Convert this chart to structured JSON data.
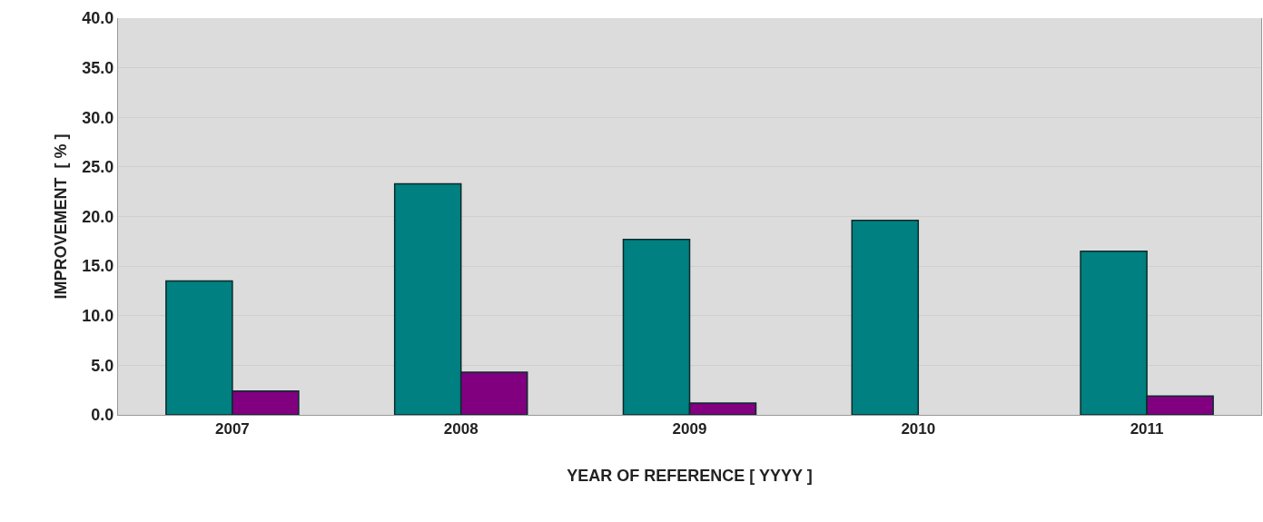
{
  "chart_data": {
    "type": "bar",
    "xlabel": "YEAR OF REFERENCE [ YYYY ]",
    "ylabel": "IMPROVEMENT  [ % ]",
    "categories": [
      "2007",
      "2008",
      "2009",
      "2010",
      "2011"
    ],
    "series": [
      {
        "color": "#008080",
        "values": [
          13.5,
          23.3,
          17.7,
          19.6,
          16.5
        ]
      },
      {
        "color": "#800080",
        "values": [
          2.4,
          4.3,
          1.2,
          null,
          1.9
        ]
      }
    ],
    "ylim": [
      0,
      40
    ],
    "yticks": [
      {
        "value": 0,
        "label": "0.0"
      },
      {
        "value": 5,
        "label": "5.0"
      },
      {
        "value": 10,
        "label": "10.0"
      },
      {
        "value": 15,
        "label": "15.0"
      },
      {
        "value": 20,
        "label": "20.0"
      },
      {
        "value": 25,
        "label": "25.0"
      },
      {
        "value": 30,
        "label": "30.0"
      },
      {
        "value": 35,
        "label": "35.0"
      },
      {
        "value": 40,
        "label": "40.0"
      }
    ],
    "grid": "y"
  }
}
